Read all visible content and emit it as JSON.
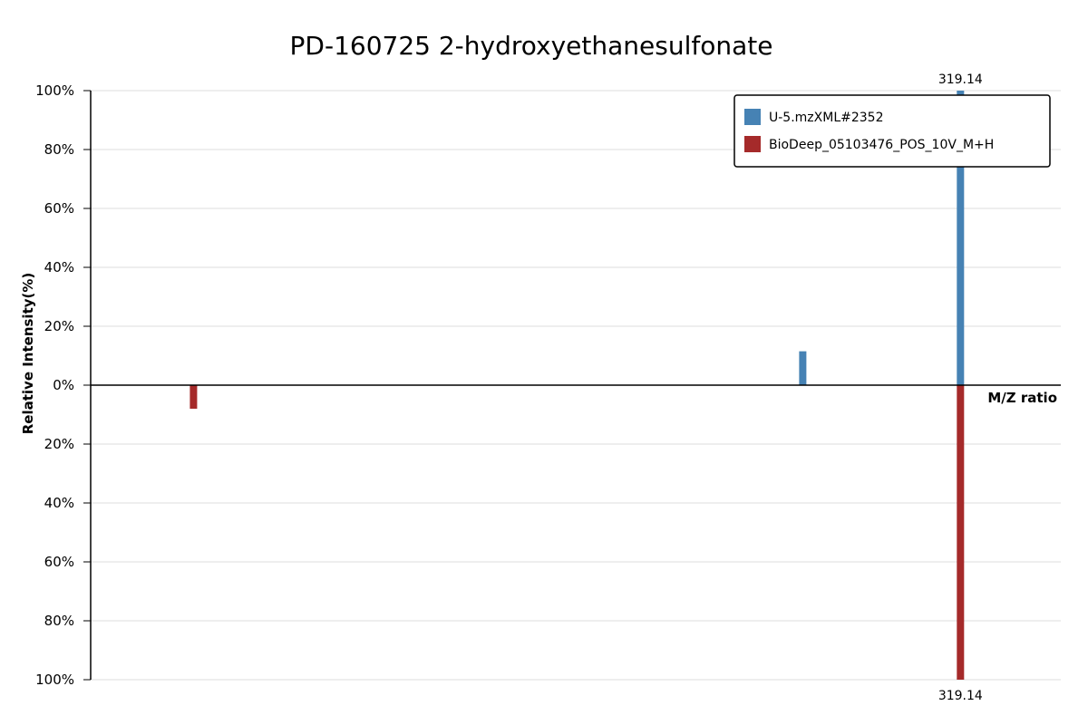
{
  "chart_data": {
    "type": "bar",
    "title": "PD-160725 2-hydroxyethanesulfonate",
    "xlabel": "M/Z ratio",
    "ylabel": "Relative Intensity(%)",
    "mirror": true,
    "xlim": [
      95,
      345
    ],
    "ylim_top": [
      0,
      100
    ],
    "ylim_bottom": [
      0,
      100
    ],
    "grid": true,
    "legend_position": "top-right",
    "y_ticks_top": [
      "0%",
      "20%",
      "40%",
      "60%",
      "80%",
      "100%"
    ],
    "y_ticks_bottom": [
      "20%",
      "40%",
      "60%",
      "80%",
      "100%"
    ],
    "series": [
      {
        "name": "U-5.mzXML#2352",
        "color": "#4682b4",
        "direction": "up",
        "peaks": [
          {
            "mz": 278.5,
            "intensity": 11.5
          },
          {
            "mz": 319.14,
            "intensity": 100,
            "label": "319.14"
          }
        ]
      },
      {
        "name": "BioDeep_05103476_POS_10V_M+H",
        "color": "#a52a2a",
        "direction": "down",
        "peaks": [
          {
            "mz": 121.5,
            "intensity": 8
          },
          {
            "mz": 319.14,
            "intensity": 100,
            "label": "319.14"
          }
        ]
      }
    ]
  }
}
